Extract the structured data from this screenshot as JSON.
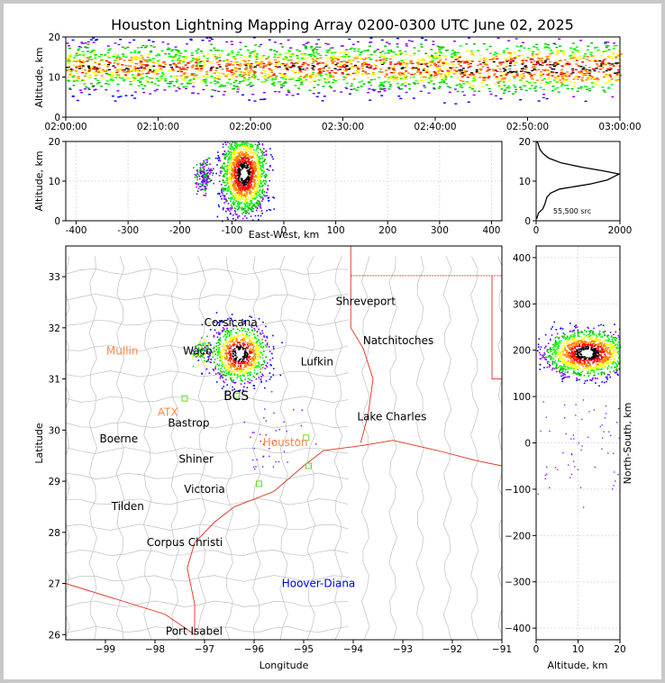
{
  "title": "Houston Lightning Mapping Array 0200-0300 UTC June 02, 2025",
  "colors": {
    "density_scale": [
      "#0000ff",
      "#8000ff",
      "#00c000",
      "#00ff00",
      "#ffff00",
      "#ff8000",
      "#ff0000",
      "#000000",
      "#ffffff"
    ],
    "border": "#e03020",
    "county": "#c0c0c0",
    "site_marker": "#66dd22",
    "label_orange": "#ff8844",
    "label_blue": "#0000ee",
    "frame_bg": "#c8c8c8"
  },
  "chart_data": [
    {
      "type": "heatmap",
      "panel": "altitude-time",
      "ylabel": "Altitude, km",
      "ylim": [
        0,
        20
      ],
      "yticks": [
        "0",
        "10",
        "20"
      ],
      "xlim": [
        "02:00:00",
        "03:00:00"
      ],
      "xticks": [
        "02:00:00",
        "02:10:00",
        "02:20:00",
        "02:30:00",
        "02:40:00",
        "02:50:00",
        "03:00:00"
      ],
      "band_km": [
        4,
        19
      ],
      "core_km": [
        10,
        15
      ]
    },
    {
      "type": "heatmap",
      "panel": "altitude-eastwest",
      "xlabel": "East-West, km",
      "ylabel": "Altitude, km",
      "xlim": [
        -420,
        420
      ],
      "xticks": [
        "-400",
        "-300",
        "-200",
        "-100",
        "0",
        "100",
        "200",
        "300",
        "400"
      ],
      "ylim": [
        0,
        20
      ],
      "yticks": [
        "0",
        "10",
        "20"
      ],
      "clusters": [
        {
          "x_km": -78,
          "z_km": 12,
          "spread_x": 22,
          "spread_z": 5
        },
        {
          "x_km": -155,
          "z_km": 11,
          "spread_x": 8,
          "spread_z": 2
        }
      ]
    },
    {
      "type": "line",
      "panel": "altitude-histogram",
      "xlim": [
        0,
        2000
      ],
      "xticks": [
        "0",
        "2000"
      ],
      "ylim": [
        0,
        20
      ],
      "yticks": [
        "0",
        "10",
        "20"
      ],
      "annotation": "55,500 src",
      "series": [
        {
          "x": [
            10,
            60,
            160,
            200,
            260,
            350,
            560,
            900,
            1300,
            1700,
            1850,
            1980,
            1600,
            1100,
            600,
            300,
            160,
            90,
            60,
            40,
            20
          ],
          "y": [
            0.5,
            2,
            3,
            4,
            6,
            7,
            8,
            8.6,
            9.3,
            10.3,
            11.1,
            11.8,
            12.6,
            13.5,
            14.6,
            15.8,
            17,
            18,
            19,
            19.6,
            20
          ]
        }
      ]
    },
    {
      "type": "scatter",
      "panel": "plan-view",
      "xlabel": "Longitude",
      "ylabel": "Latitude",
      "xlim": [
        -99.8,
        -91
      ],
      "ylim": [
        25.9,
        33.6
      ],
      "xticks": [
        "−99",
        "−98",
        "−97",
        "−96",
        "−95",
        "−94",
        "−93",
        "−92",
        "−91"
      ],
      "yticks": [
        "26",
        "27",
        "28",
        "29",
        "30",
        "31",
        "32",
        "33"
      ],
      "clusters": [
        {
          "lon": -96.3,
          "lat": 31.5,
          "spread_lon": 0.3,
          "spread_lat": 0.3
        },
        {
          "lon": -97.05,
          "lat": 31.55,
          "spread_lon": 0.1,
          "spread_lat": 0.12
        }
      ],
      "places": [
        {
          "name": "Shreveport",
          "lon": -93.75,
          "lat": 32.52,
          "color": "#000000"
        },
        {
          "name": "Corsicana",
          "lon": -96.47,
          "lat": 32.1,
          "color": "#000000"
        },
        {
          "name": "Natchitoches",
          "lon": -93.09,
          "lat": 31.75,
          "color": "#000000"
        },
        {
          "name": "Mullin",
          "lon": -98.66,
          "lat": 31.55,
          "color": "#ff8844"
        },
        {
          "name": "Waco",
          "lon": -97.14,
          "lat": 31.55,
          "color": "#000000"
        },
        {
          "name": "Lufkin",
          "lon": -94.73,
          "lat": 31.34,
          "color": "#000000"
        },
        {
          "name": "BCS",
          "lon": -96.36,
          "lat": 30.66,
          "color": "#000000"
        },
        {
          "name": "ATX",
          "lon": -97.74,
          "lat": 30.35,
          "color": "#ff8844"
        },
        {
          "name": "Bastrop",
          "lon": -97.32,
          "lat": 30.14,
          "color": "#000000"
        },
        {
          "name": "Lake Charles",
          "lon": -93.22,
          "lat": 30.26,
          "color": "#000000"
        },
        {
          "name": "Boerne",
          "lon": -98.73,
          "lat": 29.83,
          "color": "#000000"
        },
        {
          "name": "Houston",
          "lon": -95.37,
          "lat": 29.76,
          "color": "#ff8844"
        },
        {
          "name": "Shiner",
          "lon": -97.17,
          "lat": 29.43,
          "color": "#000000"
        },
        {
          "name": "Victoria",
          "lon": -97.0,
          "lat": 28.84,
          "color": "#000000"
        },
        {
          "name": "Tilden",
          "lon": -98.55,
          "lat": 28.51,
          "color": "#000000"
        },
        {
          "name": "Corpus Christi",
          "lon": -97.4,
          "lat": 27.8,
          "color": "#000000"
        },
        {
          "name": "Hoover-Diana",
          "lon": -94.7,
          "lat": 27.0,
          "color": "#0000ee"
        },
        {
          "name": "Port Isabel",
          "lon": -97.21,
          "lat": 26.07,
          "color": "#000000"
        }
      ],
      "stations": [
        {
          "lon": -97.4,
          "lat": 30.62
        },
        {
          "lon": -96.35,
          "lat": 30.67
        },
        {
          "lon": -95.9,
          "lat": 28.95
        },
        {
          "lon": -94.9,
          "lat": 29.3
        },
        {
          "lon": -94.95,
          "lat": 29.85
        }
      ]
    },
    {
      "type": "heatmap",
      "panel": "northsouth-altitude",
      "xlabel": "Altitude, km",
      "ylabel": "North-South, km",
      "xlim": [
        0,
        20
      ],
      "xticks": [
        "0",
        "10",
        "20"
      ],
      "ylim": [
        -425,
        425
      ],
      "yticks": [
        "−400",
        "−300",
        "−200",
        "−100",
        "0",
        "100",
        "200",
        "300",
        "400"
      ],
      "clusters": [
        {
          "z_km": 12,
          "y_km": 195,
          "spread_z": 5,
          "spread_y": 25
        }
      ]
    }
  ]
}
